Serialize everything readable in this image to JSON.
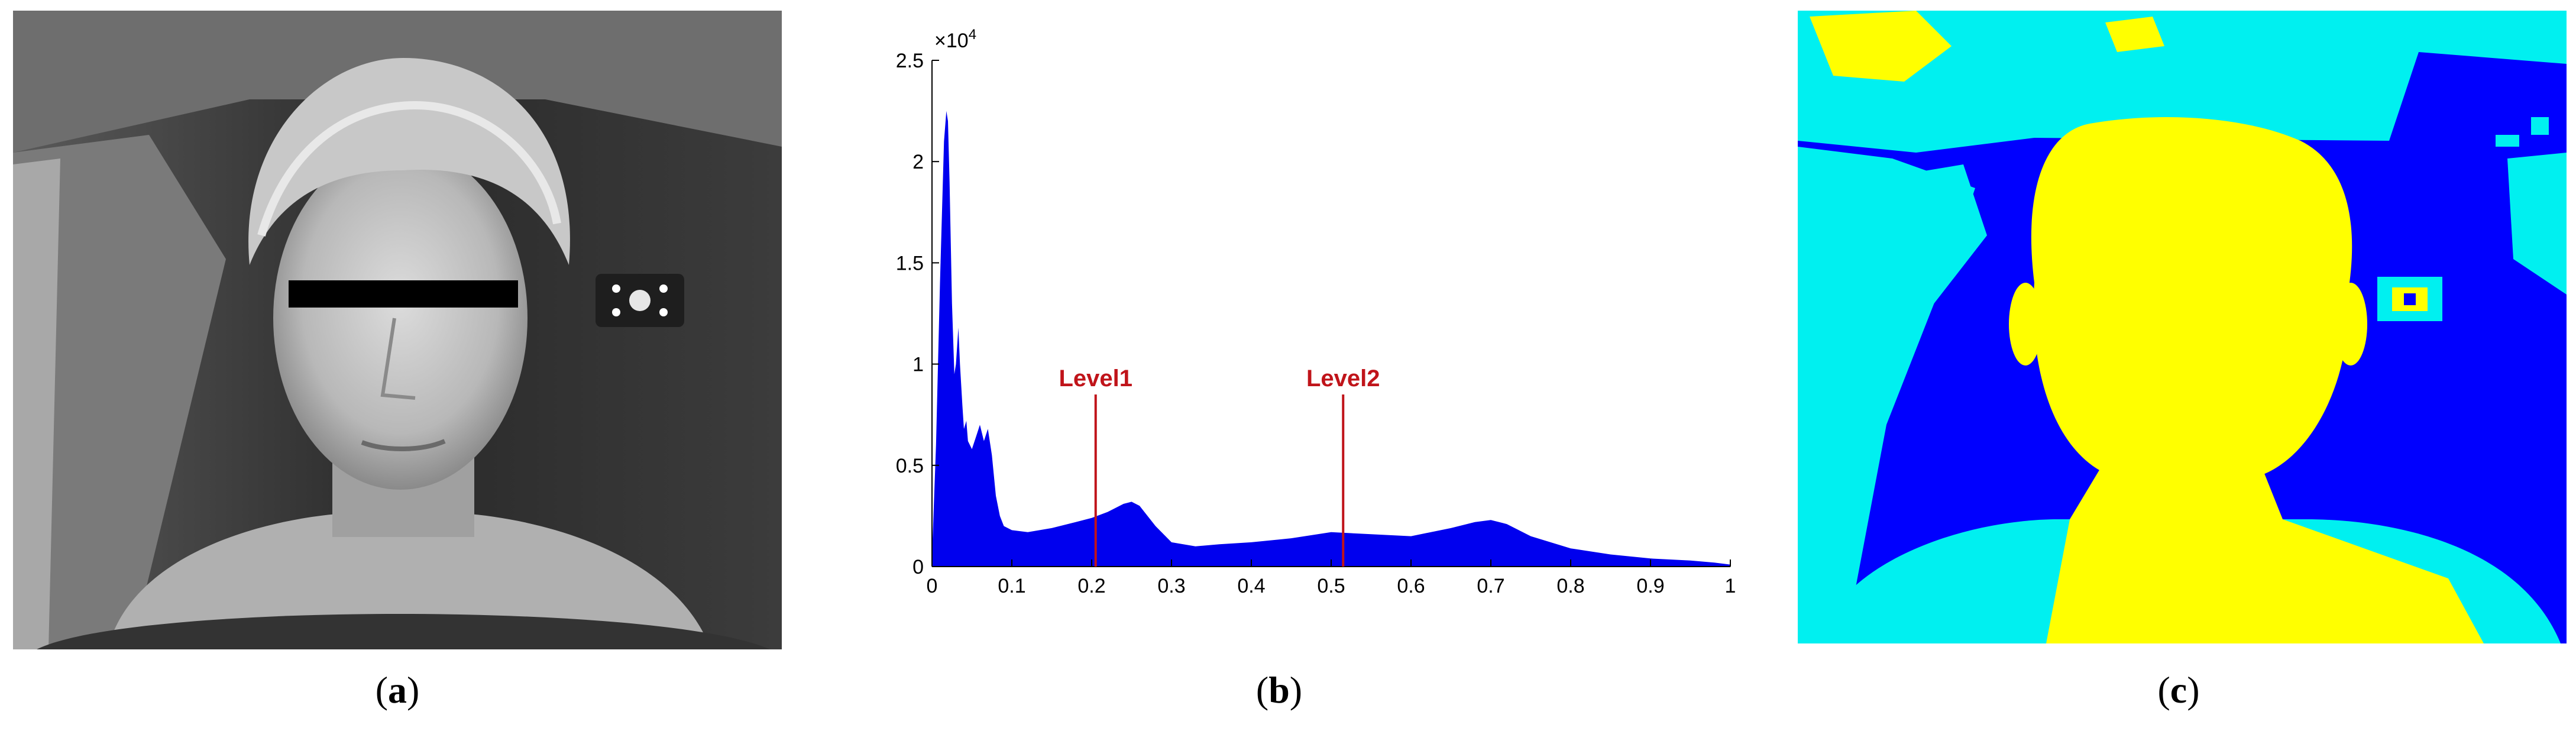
{
  "captions": {
    "a": "a",
    "b": "b",
    "c": "c"
  },
  "colors": {
    "histogram_fill": "#0000ee",
    "level_line": "#c0141a",
    "segment_dark": "#0000ff",
    "segment_mid": "#00f0f0",
    "segment_bright": "#ffff00"
  },
  "chart_data": {
    "type": "area",
    "title": "",
    "xlabel": "",
    "ylabel": "",
    "y_multiplier": "×10",
    "y_multiplier_exp": "4",
    "xlim": [
      0,
      1
    ],
    "ylim": [
      0,
      2.5
    ],
    "x_ticks": [
      0,
      0.1,
      0.2,
      0.3,
      0.4,
      0.5,
      0.6,
      0.7,
      0.8,
      0.9,
      1
    ],
    "x_tick_labels": [
      "0",
      "0.1",
      "0.2",
      "0.3",
      "0.4",
      "0.5",
      "0.6",
      "0.7",
      "0.8",
      "0.9",
      "1"
    ],
    "y_ticks": [
      0,
      0.5,
      1,
      1.5,
      2,
      2.5
    ],
    "y_tick_labels": [
      "0",
      "0.5",
      "1",
      "1.5",
      "2",
      "2.5"
    ],
    "series": [
      {
        "x": [
          0,
          0.005,
          0.01,
          0.015,
          0.018,
          0.02,
          0.022,
          0.025,
          0.028,
          0.03,
          0.033,
          0.035,
          0.038,
          0.04,
          0.043,
          0.045,
          0.05,
          0.055,
          0.06,
          0.065,
          0.07,
          0.075,
          0.08,
          0.085,
          0.09,
          0.1,
          0.12,
          0.15,
          0.18,
          0.2,
          0.22,
          0.24,
          0.25,
          0.26,
          0.28,
          0.3,
          0.33,
          0.36,
          0.4,
          0.45,
          0.5,
          0.55,
          0.6,
          0.65,
          0.68,
          0.7,
          0.72,
          0.75,
          0.8,
          0.85,
          0.9,
          0.95,
          0.98,
          1.0
        ],
        "y": [
          0.05,
          0.6,
          1.4,
          2.1,
          2.25,
          2.2,
          1.9,
          1.3,
          0.95,
          1.0,
          1.18,
          1.0,
          0.8,
          0.68,
          0.72,
          0.62,
          0.58,
          0.64,
          0.7,
          0.62,
          0.68,
          0.55,
          0.35,
          0.25,
          0.2,
          0.18,
          0.17,
          0.19,
          0.22,
          0.24,
          0.27,
          0.31,
          0.32,
          0.3,
          0.2,
          0.12,
          0.1,
          0.11,
          0.12,
          0.14,
          0.17,
          0.16,
          0.15,
          0.19,
          0.22,
          0.23,
          0.21,
          0.15,
          0.09,
          0.06,
          0.04,
          0.03,
          0.02,
          0.01
        ]
      }
    ],
    "annotations": [
      {
        "label": "Level1",
        "x": 0.205,
        "y_top": 0.85
      },
      {
        "label": "Level2",
        "x": 0.515,
        "y_top": 0.85
      }
    ]
  }
}
